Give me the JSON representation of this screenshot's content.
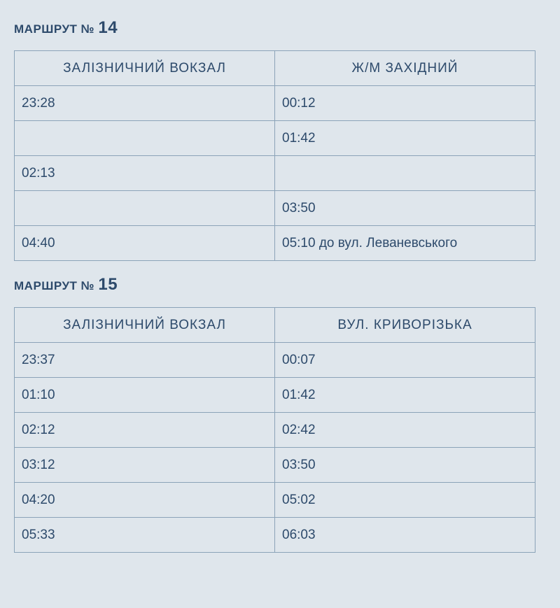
{
  "colors": {
    "background": "#dfe6ec",
    "border": "#8ba3b8",
    "text": "#2d4a6b"
  },
  "typography": {
    "title_fontsize": 17,
    "number_fontsize": 24,
    "cell_fontsize": 19
  },
  "routes": [
    {
      "title_prefix": "МАРШРУТ № ",
      "number": "14",
      "columns": [
        "ЗАЛІЗНИЧНИЙ ВОКЗАЛ",
        "Ж/М ЗАХІДНИЙ"
      ],
      "rows": [
        [
          "23:28",
          "00:12"
        ],
        [
          "",
          "01:42"
        ],
        [
          "02:13",
          ""
        ],
        [
          "",
          "03:50"
        ],
        [
          "04:40",
          "05:10 до вул. Леваневського"
        ]
      ]
    },
    {
      "title_prefix": "МАРШРУТ № ",
      "number": "15",
      "columns": [
        "ЗАЛІЗНИЧНИЙ ВОКЗАЛ",
        "ВУЛ. КРИВОРІЗЬКА"
      ],
      "rows": [
        [
          "23:37",
          "00:07"
        ],
        [
          "01:10",
          "01:42"
        ],
        [
          "02:12",
          "02:42"
        ],
        [
          "03:12",
          "03:50"
        ],
        [
          "04:20",
          "05:02"
        ],
        [
          "05:33",
          "06:03"
        ]
      ]
    }
  ]
}
